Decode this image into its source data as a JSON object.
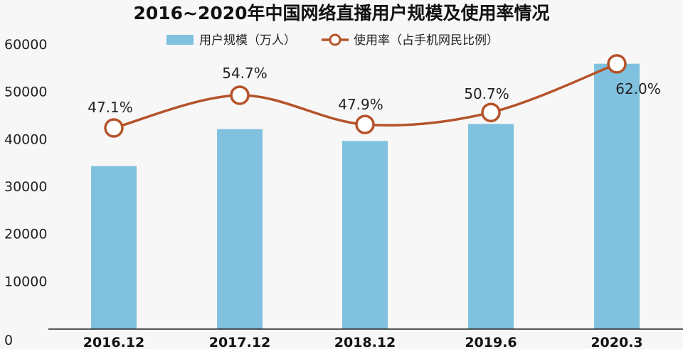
{
  "chart_data": {
    "type": "bar",
    "title": "2016~2020年中国网络直播用户规模及使用率情况",
    "categories": [
      "2016.12",
      "2017.12",
      "2018.12",
      "2019.6",
      "2020.3"
    ],
    "ylim": [
      0,
      60000
    ],
    "yticks": [
      "0",
      "10000",
      "20000",
      "30000",
      "40000",
      "50000",
      "60000"
    ],
    "grid": false,
    "legend_position": "top-center",
    "series": [
      {
        "name": "用户规模（万人）",
        "kind": "bar",
        "color": "#7fc1de",
        "values": [
          34400,
          42200,
          39700,
          43300,
          56000
        ]
      },
      {
        "name": "使用率（占手机网民比例）",
        "kind": "line",
        "color": "#b5532a",
        "values": [
          47.1,
          54.7,
          47.9,
          50.7,
          62.0
        ],
        "labels": [
          "47.1%",
          "54.7%",
          "47.9%",
          "50.7%",
          "62.0%"
        ]
      }
    ]
  }
}
